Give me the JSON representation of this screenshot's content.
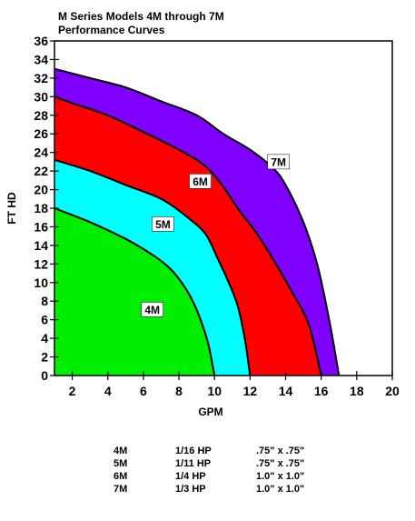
{
  "chart_data": {
    "type": "area",
    "title": "M Series Models 4M through 7M",
    "subtitle": "Performance Curves",
    "xlabel": "GPM",
    "ylabel": "FT HD",
    "xlim": [
      1,
      20
    ],
    "ylim": [
      0,
      36
    ],
    "x_ticks": [
      2,
      4,
      6,
      8,
      10,
      12,
      14,
      16,
      18,
      20
    ],
    "y_ticks": [
      0,
      2,
      4,
      6,
      8,
      10,
      12,
      14,
      16,
      18,
      20,
      22,
      24,
      26,
      28,
      30,
      32,
      34,
      36
    ],
    "grid": false,
    "series": [
      {
        "name": "7M",
        "color": "#8000ff",
        "points": [
          [
            1,
            33.0
          ],
          [
            3,
            32.0
          ],
          [
            5,
            31.0
          ],
          [
            7,
            29.5
          ],
          [
            9,
            28.0
          ],
          [
            10.5,
            26.0
          ],
          [
            12,
            24.3
          ],
          [
            13.3,
            22.3
          ],
          [
            14.0,
            20.5
          ],
          [
            15.0,
            16.5
          ],
          [
            15.8,
            11.8
          ],
          [
            16.5,
            5.5
          ],
          [
            17.0,
            0
          ]
        ]
      },
      {
        "name": "6M",
        "color": "#ff0000",
        "points": [
          [
            1,
            30.0
          ],
          [
            2,
            29.3
          ],
          [
            4,
            28.0
          ],
          [
            6,
            26.2
          ],
          [
            8,
            24.3
          ],
          [
            9.5,
            22.5
          ],
          [
            10.5,
            20.3
          ],
          [
            11.3,
            18.0
          ],
          [
            12.3,
            15.5
          ],
          [
            13.3,
            12.5
          ],
          [
            14.3,
            9.2
          ],
          [
            15.3,
            5.5
          ],
          [
            16.0,
            0
          ]
        ]
      },
      {
        "name": "5M",
        "color": "#00ffff",
        "points": [
          [
            1,
            23.2
          ],
          [
            3,
            22.0
          ],
          [
            5,
            20.5
          ],
          [
            7,
            19.0
          ],
          [
            8.5,
            17.0
          ],
          [
            9.5,
            15.2
          ],
          [
            10.2,
            12.5
          ],
          [
            10.8,
            10.0
          ],
          [
            11.3,
            7.5
          ],
          [
            11.7,
            4.0
          ],
          [
            12.0,
            0
          ]
        ]
      },
      {
        "name": "4M",
        "color": "#00ee00",
        "points": [
          [
            1,
            18.0
          ],
          [
            3,
            16.5
          ],
          [
            5,
            14.7
          ],
          [
            6.5,
            13.0
          ],
          [
            7.5,
            11.5
          ],
          [
            8.3,
            9.6
          ],
          [
            8.9,
            7.5
          ],
          [
            9.4,
            5.0
          ],
          [
            9.7,
            3.0
          ],
          [
            10.0,
            0
          ]
        ]
      }
    ],
    "legend": {
      "placement": "bottom",
      "rows": [
        {
          "model": "4M",
          "hp": "1/16 HP",
          "size": ".75\" x .75\""
        },
        {
          "model": "5M",
          "hp": "1/11 HP",
          "size": ".75\" x .75\""
        },
        {
          "model": "6M",
          "hp": "1/4   HP",
          "size": "1.0\" x 1.0\""
        },
        {
          "model": "7M",
          "hp": "1/3   HP",
          "size": "1.0\" x 1.0\""
        }
      ]
    }
  }
}
